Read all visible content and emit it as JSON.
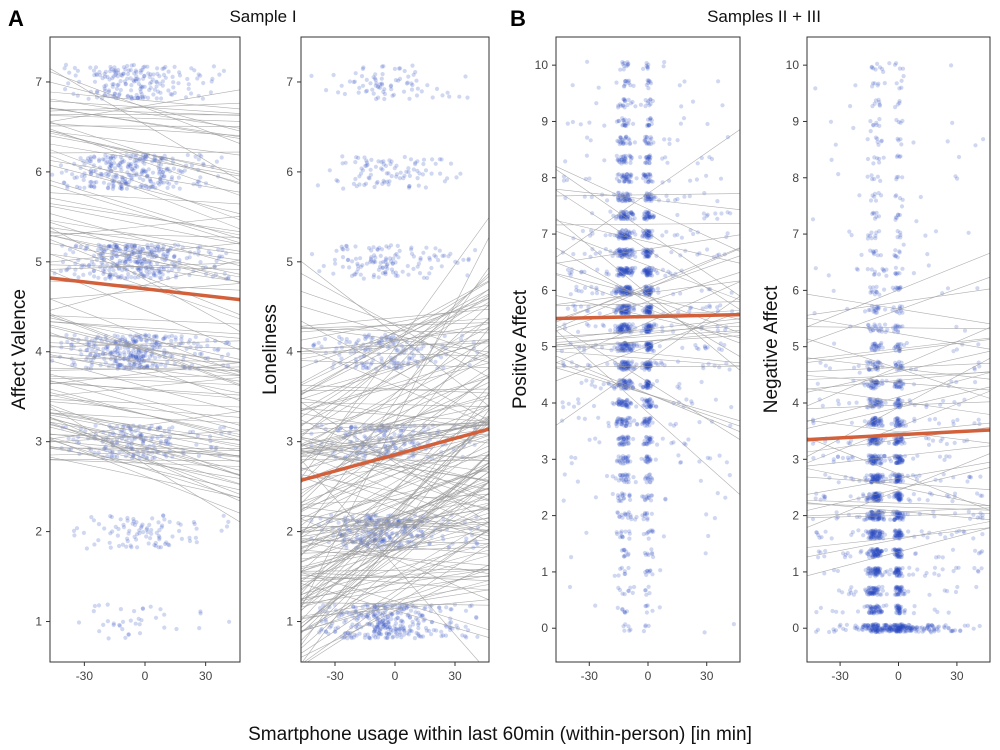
{
  "figure": {
    "xlabel": "Smartphone usage within last 60min (within-person) [in min]",
    "panels": [
      {
        "letter": "A",
        "title": "Sample I"
      },
      {
        "letter": "B",
        "title": "Samples II + III"
      }
    ]
  },
  "colors": {
    "points": "#2a4bbd",
    "person_lines": "#9a9a9a",
    "fixed_line": "#d2603a"
  },
  "chart_data": [
    {
      "type": "scatter",
      "panel": "A",
      "title": "Sample I",
      "ylabel": "Affect Valence",
      "xlabel": "Smartphone usage within last 60min (within-person) [in min]",
      "xlim": [
        -47,
        47
      ],
      "ylim": [
        0.55,
        7.5
      ],
      "xticks": [
        -30,
        0,
        30
      ],
      "yticks": [
        1,
        2,
        3,
        4,
        5,
        6,
        7
      ],
      "point_levels": [
        {
          "y": 1,
          "density": 0.12
        },
        {
          "y": 2,
          "density": 0.3
        },
        {
          "y": 3,
          "density": 0.55
        },
        {
          "y": 4,
          "density": 1.0
        },
        {
          "y": 5,
          "density": 1.0
        },
        {
          "y": 6,
          "density": 0.85
        },
        {
          "y": 7,
          "density": 0.6
        }
      ],
      "person_lines": {
        "count": 120,
        "y_range": [
          2.6,
          6.8
        ],
        "slope_mean": -0.004,
        "slope_sd": 0.004
      },
      "fixed_effect": {
        "x": [
          -47,
          47
        ],
        "y": [
          4.82,
          4.58
        ]
      }
    },
    {
      "type": "scatter",
      "panel": "A",
      "title": "Sample I",
      "ylabel": "Loneliness",
      "xlabel": "Smartphone usage within last 60min (within-person) [in min]",
      "xlim": [
        -47,
        47
      ],
      "ylim": [
        0.55,
        7.5
      ],
      "xticks": [
        -30,
        0,
        30
      ],
      "yticks": [
        1,
        2,
        3,
        4,
        5,
        6,
        7
      ],
      "point_levels": [
        {
          "y": 1,
          "density": 1.0
        },
        {
          "y": 2,
          "density": 0.85
        },
        {
          "y": 3,
          "density": 0.6
        },
        {
          "y": 4,
          "density": 0.5
        },
        {
          "y": 5,
          "density": 0.4
        },
        {
          "y": 6,
          "density": 0.3
        },
        {
          "y": 7,
          "density": 0.25
        }
      ],
      "person_lines": {
        "count": 180,
        "y_range": [
          1.1,
          4.4
        ],
        "slope_mean": 0.006,
        "slope_sd": 0.01
      },
      "fixed_effect": {
        "x": [
          -47,
          47
        ],
        "y": [
          2.57,
          3.14
        ]
      }
    },
    {
      "type": "scatter",
      "panel": "B",
      "title": "Samples II + III",
      "ylabel": "Positive Affect",
      "xlabel": "Smartphone usage within last 60min (within-person) [in min]",
      "xlim": [
        -47,
        47
      ],
      "ylim": [
        -0.6,
        10.5
      ],
      "xticks": [
        -30,
        0,
        30
      ],
      "yticks": [
        0,
        1,
        2,
        3,
        4,
        5,
        6,
        7,
        8,
        9,
        10
      ],
      "level_step": 0.333,
      "center": 5.7,
      "person_lines": {
        "count": 40,
        "y_range": [
          3.8,
          7.9
        ],
        "slope_mean": 0.0,
        "slope_sd": 0.012
      },
      "fixed_effect": {
        "x": [
          -47,
          47
        ],
        "y": [
          5.5,
          5.57
        ]
      }
    },
    {
      "type": "scatter",
      "panel": "B",
      "title": "Samples II + III",
      "ylabel": "Negative Affect",
      "xlabel": "Smartphone usage within last 60min (within-person) [in min]",
      "xlim": [
        -47,
        47
      ],
      "ylim": [
        -0.6,
        10.5
      ],
      "xticks": [
        -30,
        0,
        30
      ],
      "yticks": [
        0,
        1,
        2,
        3,
        4,
        5,
        6,
        7,
        8,
        9,
        10
      ],
      "level_step": 0.333,
      "center": 2.0,
      "person_lines": {
        "count": 40,
        "y_range": [
          1.2,
          6.2
        ],
        "slope_mean": 0.003,
        "slope_sd": 0.008
      },
      "fixed_effect": {
        "x": [
          -47,
          47
        ],
        "y": [
          3.35,
          3.52
        ]
      }
    }
  ]
}
